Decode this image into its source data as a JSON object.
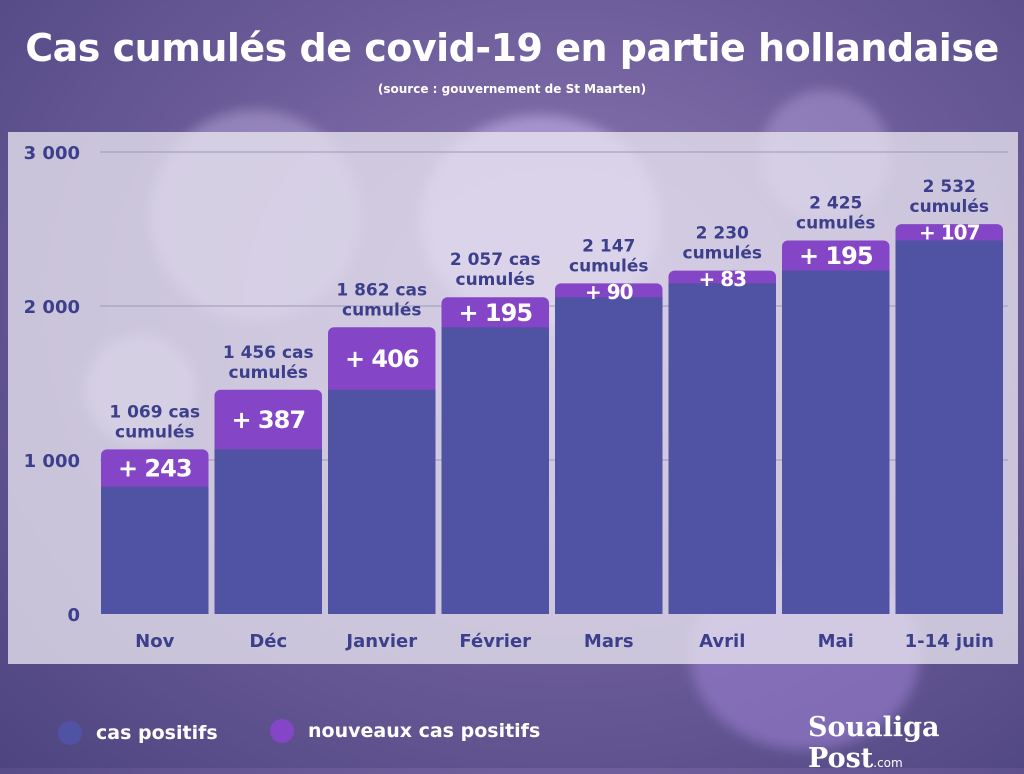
{
  "header": {
    "title": "Cas cumulés de covid-19 en partie hollandaise",
    "subtitle": "(source : gouvernement de St Maarten)"
  },
  "colors": {
    "base": "#5052a3",
    "increase": "#8446c6",
    "label": "#3d3f8c"
  },
  "legend": {
    "base_label": "cas positifs",
    "increase_label": "nouveaux cas positifs"
  },
  "brand": {
    "name": "Soualiga Post",
    "suffix": ".com"
  },
  "chart_data": {
    "type": "bar",
    "stacked": true,
    "title": "Cas cumulés de covid-19 en partie hollandaise",
    "subtitle": "(source : gouvernement de St Maarten)",
    "categories": [
      "Nov",
      "Déc",
      "Janvier",
      "Février",
      "Mars",
      "Avril",
      "Mai",
      "1-14 juin"
    ],
    "series": [
      {
        "name": "cas positifs",
        "values": [
          826,
          1069,
          1456,
          1862,
          2057,
          2147,
          2230,
          2425
        ]
      },
      {
        "name": "nouveaux cas positifs",
        "values": [
          243,
          387,
          406,
          195,
          90,
          83,
          195,
          107
        ]
      }
    ],
    "increase_labels": [
      "+ 243",
      "+ 387",
      "+ 406",
      "+ 195",
      "+ 90",
      "+ 83",
      "+ 195",
      "+ 107"
    ],
    "total_labels": [
      [
        "1 069 cas",
        "cumulés"
      ],
      [
        "1 456 cas",
        "cumulés"
      ],
      [
        "1 862 cas",
        "cumulés"
      ],
      [
        "2 057 cas",
        "cumulés"
      ],
      [
        "2 147",
        "cumulés"
      ],
      [
        "2 230",
        "cumulés"
      ],
      [
        "2 425",
        "cumulés"
      ],
      [
        "2 532",
        "cumulés"
      ]
    ],
    "yticks": [
      0,
      1000,
      2000,
      3000
    ],
    "ytick_labels": [
      "0",
      "1 000",
      "2 000",
      "3 000"
    ],
    "ylim": [
      0,
      3000
    ],
    "grid": true,
    "legend_position": "bottom-left"
  }
}
